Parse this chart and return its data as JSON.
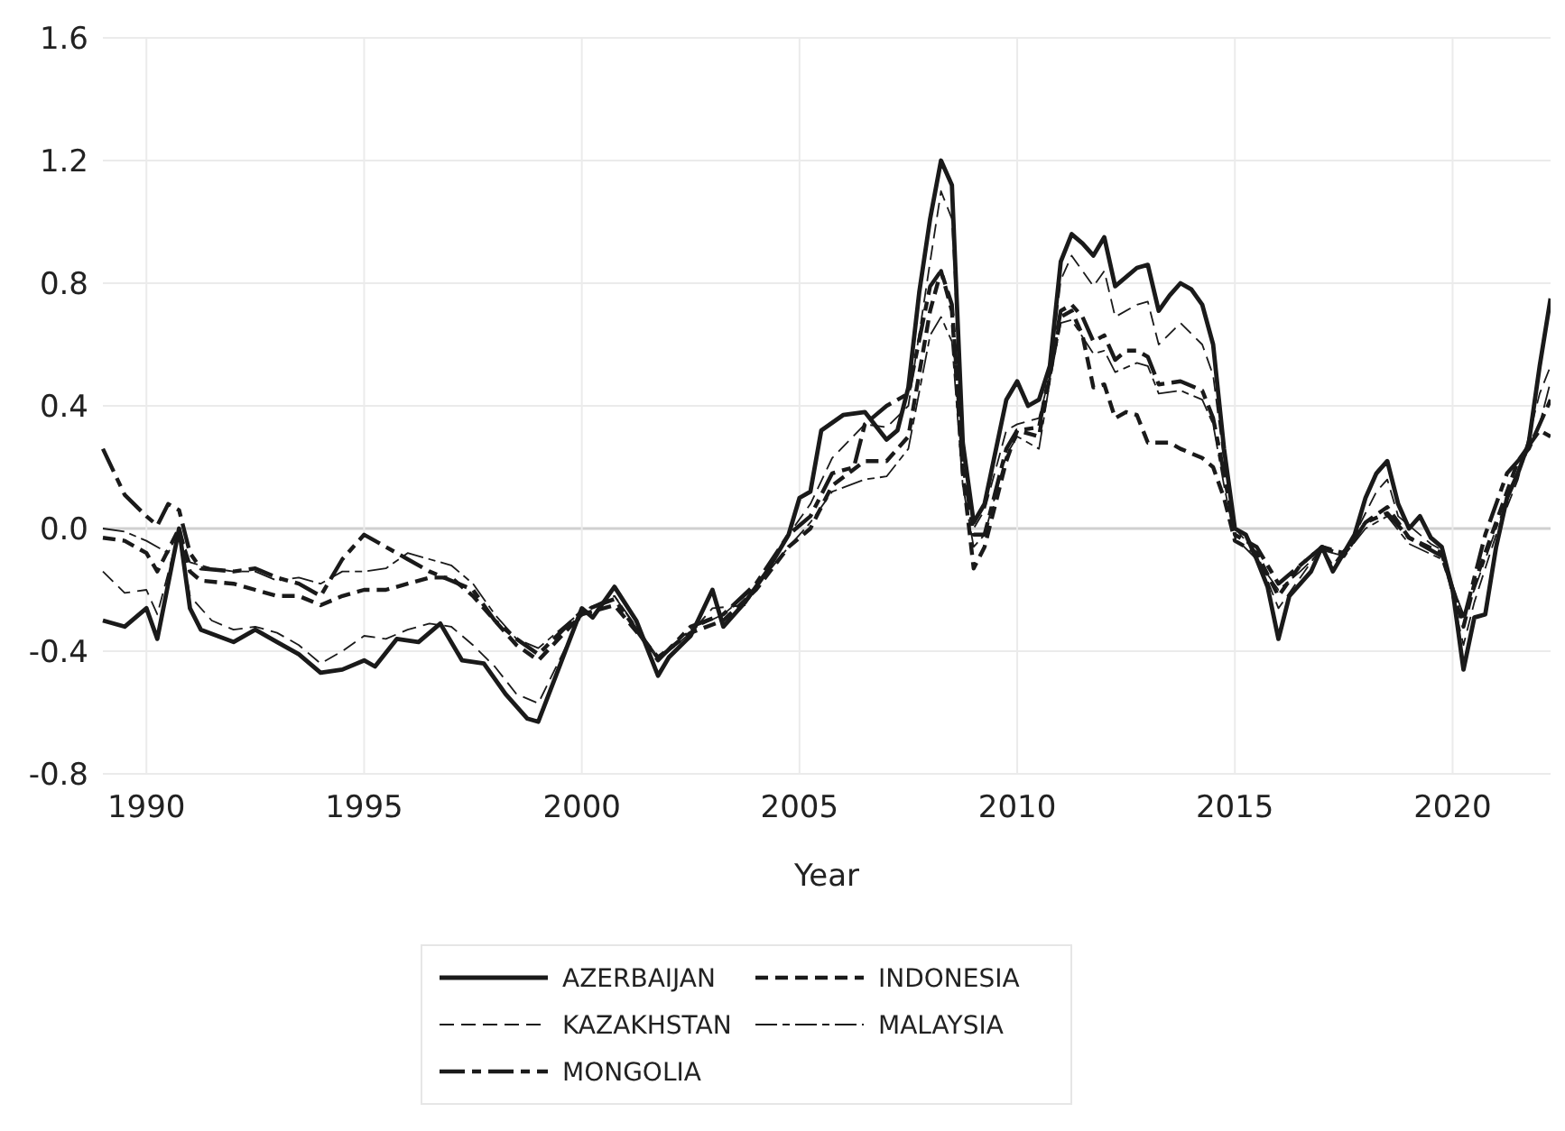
{
  "chart_data": {
    "type": "line",
    "xlabel": "Year",
    "xlim": [
      1989,
      2022.25
    ],
    "xticks": [
      1990,
      1995,
      2000,
      2005,
      2010,
      2015,
      2020
    ],
    "ylim": [
      -0.8,
      1.6
    ],
    "yticks": [
      -0.8,
      -0.4,
      {
        "value": 0,
        "label": "0.0"
      },
      0.4,
      0.8,
      1.2,
      1.6
    ],
    "grid": true,
    "legend": "bottom",
    "series": [
      {
        "name": "AZERBAIJAN",
        "color": "#1a1a1a",
        "line_style": "solid",
        "x": [
          1989,
          1989.5,
          1990,
          1990.25,
          1990.75,
          1991,
          1991.25,
          1992,
          1992.5,
          1993,
          1993.5,
          1994,
          1994.5,
          1995,
          1995.25,
          1995.75,
          1996.25,
          1996.75,
          1997.25,
          1997.75,
          1998.25,
          1998.75,
          1999,
          2000,
          2000.25,
          2000.75,
          2001.25,
          2001.75,
          2002,
          2002.5,
          2003,
          2003.25,
          2003.75,
          2004.25,
          2004.75,
          2005,
          2005.25,
          2005.5,
          2006,
          2006.5,
          2007,
          2007.25,
          2007.5,
          2007.75,
          2008,
          2008.25,
          2008.5,
          2008.75,
          2009,
          2009.25,
          2009.75,
          2010,
          2010.25,
          2010.5,
          2010.75,
          2011,
          2011.25,
          2011.5,
          2011.75,
          2012,
          2012.25,
          2012.75,
          2013,
          2013.25,
          2013.5,
          2013.75,
          2014,
          2014.25,
          2014.5,
          2014.75,
          2015,
          2015.25,
          2015.5,
          2015.75,
          2016,
          2016.25,
          2016.75,
          2017,
          2017.25,
          2017.75,
          2018,
          2018.25,
          2018.5,
          2018.75,
          2019,
          2019.25,
          2019.5,
          2019.75,
          2020,
          2020.25,
          2020.5,
          2020.75,
          2021,
          2021.25,
          2021.5,
          2021.75,
          2022,
          2022.25
        ],
        "values": [
          -0.3,
          -0.32,
          -0.26,
          -0.36,
          0.0,
          -0.26,
          -0.33,
          -0.37,
          -0.33,
          -0.37,
          -0.41,
          -0.47,
          -0.46,
          -0.43,
          -0.45,
          -0.36,
          -0.37,
          -0.31,
          -0.43,
          -0.44,
          -0.54,
          -0.62,
          -0.63,
          -0.26,
          -0.29,
          -0.19,
          -0.3,
          -0.48,
          -0.42,
          -0.35,
          -0.2,
          -0.32,
          -0.24,
          -0.14,
          -0.02,
          0.1,
          0.12,
          0.32,
          0.37,
          0.38,
          0.29,
          0.32,
          0.46,
          0.77,
          1.01,
          1.2,
          1.12,
          0.28,
          0.02,
          0.08,
          0.42,
          0.48,
          0.4,
          0.42,
          0.53,
          0.87,
          0.96,
          0.93,
          0.89,
          0.95,
          0.79,
          0.85,
          0.86,
          0.71,
          0.76,
          0.8,
          0.78,
          0.73,
          0.6,
          0.26,
          0.0,
          -0.02,
          -0.1,
          -0.19,
          -0.36,
          -0.22,
          -0.14,
          -0.06,
          -0.14,
          -0.02,
          0.1,
          0.18,
          0.22,
          0.08,
          0.0,
          0.04,
          -0.03,
          -0.06,
          -0.2,
          -0.46,
          -0.29,
          -0.28,
          -0.06,
          0.1,
          0.18,
          0.28,
          0.53,
          0.75
        ]
      },
      {
        "name": "INDONESIA",
        "color": "#1a1a1a",
        "line_style": "dashed",
        "x": [
          1989,
          1989.5,
          1990,
          1990.25,
          1990.75,
          1991,
          1991.25,
          1992,
          1992.5,
          1993,
          1993.5,
          1994,
          1994.5,
          1995,
          1995.5,
          1996,
          1996.5,
          1997,
          1997.5,
          1998,
          1998.5,
          1999,
          2000,
          2000.75,
          2001.75,
          2002.5,
          2003.25,
          2004,
          2004.75,
          2005.25,
          2005.75,
          2006.5,
          2007,
          2007.5,
          2008,
          2008.25,
          2008.5,
          2008.75,
          2009,
          2009.25,
          2009.75,
          2010,
          2010.5,
          2010.75,
          2011,
          2011.25,
          2011.5,
          2011.75,
          2012,
          2012.25,
          2012.5,
          2012.75,
          2013,
          2013.5,
          2013.75,
          2014.25,
          2014.5,
          2014.75,
          2015,
          2015.5,
          2016,
          2016.5,
          2017,
          2017.5,
          2018,
          2018.5,
          2019,
          2019.75,
          2020.25,
          2020.5,
          2021,
          2021.5,
          2022,
          2022.25
        ],
        "values": [
          -0.03,
          -0.04,
          -0.08,
          -0.14,
          0.0,
          -0.14,
          -0.17,
          -0.18,
          -0.2,
          -0.22,
          -0.22,
          -0.25,
          -0.22,
          -0.2,
          -0.2,
          -0.18,
          -0.16,
          -0.16,
          -0.22,
          -0.3,
          -0.38,
          -0.43,
          -0.28,
          -0.25,
          -0.42,
          -0.34,
          -0.3,
          -0.2,
          -0.06,
          0.0,
          0.14,
          0.22,
          0.22,
          0.3,
          0.71,
          0.84,
          0.71,
          0.18,
          -0.13,
          -0.06,
          0.22,
          0.32,
          0.3,
          0.5,
          0.69,
          0.71,
          0.63,
          0.46,
          0.47,
          0.36,
          0.38,
          0.37,
          0.28,
          0.28,
          0.26,
          0.23,
          0.2,
          0.1,
          -0.04,
          -0.08,
          -0.22,
          -0.12,
          -0.06,
          -0.08,
          0.02,
          0.07,
          -0.03,
          -0.08,
          -0.32,
          -0.18,
          0.02,
          0.22,
          0.32,
          0.3
        ]
      },
      {
        "name": "KAZAKHSTAN",
        "color": "#1a1a1a",
        "line_style": "dashed",
        "x": [
          1989,
          1989.5,
          1990,
          1990.25,
          1990.75,
          1991,
          1991.5,
          1992,
          1992.5,
          1993,
          1993.5,
          1994,
          1994.5,
          1995,
          1995.5,
          1996,
          1996.5,
          1997,
          1997.5,
          1998,
          1998.5,
          1999,
          2000,
          2000.75,
          2001.75,
          2002.5,
          2003,
          2003.75,
          2004.75,
          2005.25,
          2005.75,
          2006.5,
          2007,
          2007.5,
          2008,
          2008.25,
          2008.5,
          2008.75,
          2009,
          2009.25,
          2009.75,
          2010,
          2010.5,
          2010.75,
          2011,
          2011.25,
          2011.75,
          2012,
          2012.25,
          2012.75,
          2013,
          2013.25,
          2013.75,
          2014.25,
          2014.5,
          2014.75,
          2015,
          2015.5,
          2016,
          2016.5,
          2017,
          2017.25,
          2017.75,
          2018.25,
          2018.5,
          2018.75,
          2019.5,
          2019.75,
          2020.25,
          2020.5,
          2021,
          2021.5,
          2022,
          2022.25
        ],
        "values": [
          -0.14,
          -0.21,
          -0.2,
          -0.28,
          -0.01,
          -0.22,
          -0.3,
          -0.33,
          -0.32,
          -0.34,
          -0.38,
          -0.44,
          -0.4,
          -0.35,
          -0.36,
          -0.33,
          -0.31,
          -0.32,
          -0.38,
          -0.45,
          -0.54,
          -0.57,
          -0.28,
          -0.22,
          -0.43,
          -0.34,
          -0.26,
          -0.25,
          -0.02,
          0.08,
          0.23,
          0.34,
          0.33,
          0.4,
          0.87,
          1.1,
          1.01,
          0.26,
          0.0,
          0.06,
          0.32,
          0.34,
          0.36,
          0.5,
          0.81,
          0.89,
          0.79,
          0.84,
          0.69,
          0.73,
          0.74,
          0.6,
          0.67,
          0.6,
          0.5,
          0.22,
          0.0,
          -0.08,
          -0.26,
          -0.16,
          -0.06,
          -0.12,
          -0.02,
          0.12,
          0.16,
          0.04,
          -0.05,
          -0.07,
          -0.38,
          -0.24,
          -0.02,
          0.16,
          0.44,
          0.53
        ]
      },
      {
        "name": "MALAYSIA",
        "color": "#1a1a1a",
        "line_style": "dashed",
        "x": [
          1989,
          1989.5,
          1990,
          1990.5,
          1990.75,
          1991,
          1991.5,
          1992,
          1992.5,
          1993,
          1993.5,
          1994,
          1994.5,
          1995,
          1995.5,
          1996,
          1996.5,
          1997,
          1997.5,
          1998,
          1998.5,
          1999,
          2000,
          2000.75,
          2001.75,
          2002.5,
          2003.25,
          2004,
          2004.75,
          2005.25,
          2005.75,
          2006.5,
          2007,
          2007.5,
          2008,
          2008.25,
          2008.5,
          2008.75,
          2009,
          2009.25,
          2009.75,
          2010,
          2010.5,
          2010.75,
          2011,
          2011.25,
          2011.75,
          2012,
          2012.25,
          2012.75,
          2013,
          2013.25,
          2013.75,
          2014.25,
          2014.5,
          2014.75,
          2015,
          2015.5,
          2016,
          2016.5,
          2017,
          2017.5,
          2018,
          2018.5,
          2019,
          2019.75,
          2020.25,
          2020.5,
          2021,
          2021.5,
          2022,
          2022.25
        ],
        "values": [
          0.0,
          -0.01,
          -0.04,
          -0.08,
          0.0,
          -0.11,
          -0.13,
          -0.14,
          -0.14,
          -0.17,
          -0.16,
          -0.18,
          -0.14,
          -0.14,
          -0.13,
          -0.08,
          -0.1,
          -0.12,
          -0.18,
          -0.28,
          -0.36,
          -0.39,
          -0.27,
          -0.22,
          -0.42,
          -0.33,
          -0.28,
          -0.19,
          -0.06,
          0.02,
          0.12,
          0.16,
          0.17,
          0.26,
          0.63,
          0.69,
          0.61,
          0.14,
          -0.06,
          -0.02,
          0.24,
          0.3,
          0.26,
          0.48,
          0.67,
          0.68,
          0.57,
          0.58,
          0.51,
          0.54,
          0.53,
          0.44,
          0.45,
          0.42,
          0.34,
          0.14,
          -0.03,
          -0.1,
          -0.2,
          -0.14,
          -0.07,
          -0.09,
          0.0,
          0.04,
          -0.05,
          -0.1,
          -0.28,
          -0.2,
          0.0,
          0.18,
          0.34,
          0.48
        ]
      },
      {
        "name": "MONGOLIA",
        "color": "#1a1a1a",
        "line_style": "dashed",
        "x": [
          1989,
          1989.5,
          1990,
          1990.25,
          1990.5,
          1990.75,
          1991,
          1991.25,
          1992,
          1992.5,
          1993,
          1993.5,
          1994,
          1994.5,
          1995,
          1995.5,
          1996,
          1996.5,
          1997,
          1997.5,
          1998,
          1998.5,
          1999,
          2000,
          2000.75,
          2001.75,
          2002.5,
          2003.25,
          2004,
          2004.75,
          2005.25,
          2005.75,
          2006.25,
          2006.5,
          2007,
          2007.5,
          2008,
          2008.25,
          2008.5,
          2008.75,
          2009,
          2009.25,
          2009.75,
          2010,
          2010.5,
          2010.75,
          2011,
          2011.25,
          2011.5,
          2011.75,
          2012,
          2012.25,
          2012.5,
          2012.75,
          2013,
          2013.25,
          2013.75,
          2014.25,
          2014.5,
          2014.75,
          2015,
          2015.5,
          2016,
          2016.5,
          2017,
          2017.5,
          2018,
          2018.5,
          2019,
          2019.75,
          2020.25,
          2020.5,
          2020.75,
          2021.25,
          2021.75,
          2022.25
        ],
        "values": [
          0.26,
          0.11,
          0.04,
          0.01,
          0.08,
          0.06,
          -0.08,
          -0.13,
          -0.14,
          -0.13,
          -0.16,
          -0.18,
          -0.22,
          -0.1,
          -0.02,
          -0.06,
          -0.1,
          -0.14,
          -0.17,
          -0.2,
          -0.3,
          -0.36,
          -0.41,
          -0.27,
          -0.23,
          -0.43,
          -0.32,
          -0.28,
          -0.18,
          -0.02,
          0.04,
          0.18,
          0.2,
          0.34,
          0.4,
          0.44,
          0.79,
          0.84,
          0.73,
          0.22,
          -0.02,
          -0.02,
          0.26,
          0.32,
          0.33,
          0.51,
          0.71,
          0.73,
          0.69,
          0.61,
          0.63,
          0.55,
          0.58,
          0.58,
          0.56,
          0.47,
          0.48,
          0.45,
          0.36,
          0.18,
          -0.02,
          -0.06,
          -0.18,
          -0.12,
          -0.06,
          -0.09,
          0.02,
          0.05,
          -0.03,
          -0.09,
          -0.3,
          -0.16,
          -0.02,
          0.18,
          0.26,
          0.42
        ]
      }
    ]
  }
}
